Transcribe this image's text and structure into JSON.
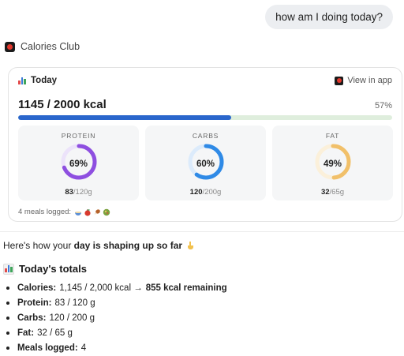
{
  "user_message": "how am I doing today?",
  "app": {
    "name": "Calories Club",
    "brand_color": "#e2372c"
  },
  "card": {
    "title": "Today",
    "view_link": "View in app",
    "kcal_text": "1145 / 2000 kcal",
    "percent_text": "57%",
    "progress": 0.57,
    "macros": [
      {
        "title": "PROTEIN",
        "percent_text": "69%",
        "percent": 69,
        "current": "83",
        "total": "/120g",
        "color": "#8e4fe0",
        "track": "#ece3fa"
      },
      {
        "title": "CARBS",
        "percent_text": "60%",
        "percent": 60,
        "current": "120",
        "total": "/200g",
        "color": "#2f8ae6",
        "track": "#dcebfb"
      },
      {
        "title": "FAT",
        "percent_text": "49%",
        "percent": 49,
        "current": "32",
        "total": "/65g",
        "color": "#f1c06a",
        "track": "#fbf0da"
      }
    ],
    "meals_logged_text": "4 meals logged:",
    "meal_icons": [
      "bowl-icon",
      "apple-icon",
      "drumstick-icon",
      "salad-icon"
    ]
  },
  "message": {
    "intro_pre": "Here's how your ",
    "intro_bold": "day is shaping up so far",
    "totals_title": "Today's totals",
    "totals": [
      {
        "key": "Calories:",
        "value": "1,145 / 2,000 kcal →",
        "strong": "855 kcal remaining"
      },
      {
        "key": "Protein:",
        "value": "83 / 120 g",
        "strong": ""
      },
      {
        "key": "Carbs:",
        "value": "120 / 200 g",
        "strong": ""
      },
      {
        "key": "Fat:",
        "value": "32 / 65 g",
        "strong": ""
      },
      {
        "key": "Meals logged:",
        "value": "4",
        "strong": ""
      }
    ]
  }
}
